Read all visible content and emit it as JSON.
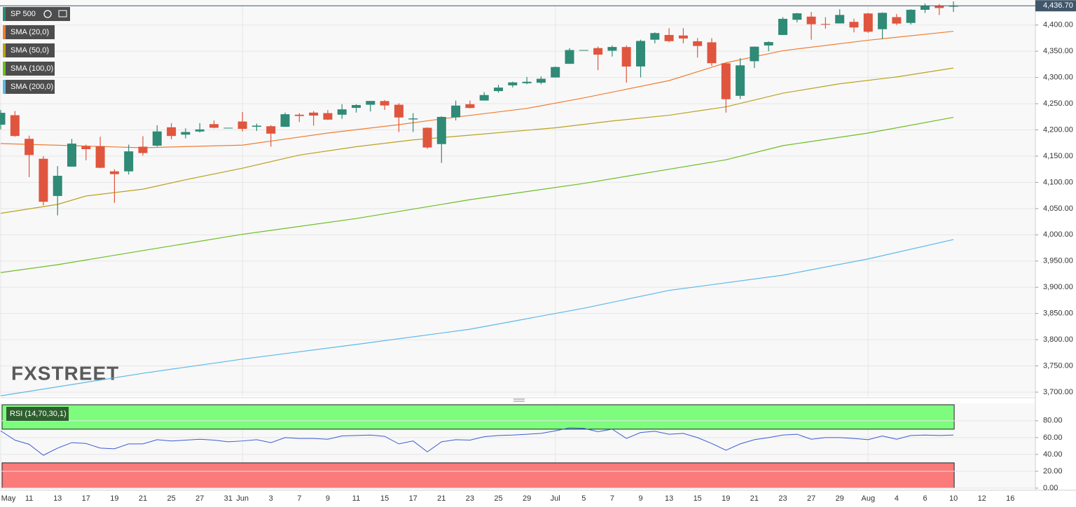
{
  "chart_data": [
    {
      "type": "candlestick",
      "title": "SP 500",
      "categories": [
        "May",
        null,
        "11",
        null,
        "13",
        null,
        "17",
        null,
        "19",
        null,
        "21",
        null,
        "25",
        null,
        "27",
        null,
        "31",
        "Jun",
        null,
        "3",
        null,
        "7",
        null,
        "9",
        null,
        "11",
        null,
        "15",
        null,
        "17",
        null,
        "21",
        null,
        "23",
        null,
        "25",
        null,
        "29",
        null,
        "Jul",
        null,
        "5",
        null,
        "7",
        null,
        "9",
        null,
        "13",
        null,
        "15",
        null,
        "19",
        null,
        "21",
        null,
        "23",
        null,
        "27",
        null,
        "29",
        null,
        "Aug",
        null,
        "4",
        null,
        "6",
        null,
        "10",
        null,
        "12",
        null,
        "16"
      ],
      "open": [
        4210,
        4228,
        4183,
        4145,
        4074,
        4130,
        4169,
        4169,
        4121,
        4121,
        4168,
        4170,
        4205,
        4191,
        4197,
        4211,
        4204.1,
        4216,
        4206,
        4207,
        4206,
        4229,
        4233,
        4232,
        4229,
        4242,
        4248,
        4255,
        4248,
        4220,
        4204,
        4173,
        4224,
        4249,
        4256,
        4274,
        4285,
        4289,
        4290,
        4300,
        4326,
        4352.3,
        4356,
        4351,
        4358,
        4321,
        4372,
        4381,
        4380,
        4369,
        4367,
        4327,
        4265,
        4331,
        4361,
        4381,
        4410,
        4416,
        4402,
        4403,
        4406,
        4422,
        4392,
        4415,
        4404,
        4429,
        4437,
        4435,
        null,
        null,
        null,
        null
      ],
      "high": [
        4238,
        4236,
        4189,
        4150,
        4131,
        4183,
        4172,
        4187,
        4125,
        4172,
        4188,
        4209,
        4213,
        4203,
        4213,
        4218,
        4204.1,
        4234,
        4212,
        4209,
        4233,
        4232,
        4236,
        4238,
        4249,
        4249,
        4255,
        4257,
        4251,
        4232,
        4205,
        4226,
        4256,
        4256,
        4272,
        4286,
        4292,
        4301,
        4302,
        4321,
        4356,
        4352.3,
        4359,
        4361,
        4361,
        4372,
        4386,
        4394,
        4394,
        4375,
        4375,
        4327,
        4337,
        4359,
        4369,
        4415,
        4423,
        4425,
        4415,
        4430,
        4412,
        4423,
        4424,
        4421,
        4430,
        4441,
        4440,
        4445,
        null,
        null,
        null,
        null
      ],
      "low": [
        4201,
        4187,
        4110,
        4056,
        4037,
        4130,
        4142,
        4127,
        4061,
        4115,
        4151,
        4168,
        4182,
        4184,
        4195,
        4203,
        4204.1,
        4197,
        4198,
        4168,
        4206,
        4215,
        4208,
        4219,
        4221,
        4233,
        4235,
        4238,
        4196,
        4196,
        4164,
        4137,
        4218,
        4241,
        4256,
        4271,
        4281,
        4287,
        4287,
        4300,
        4326,
        4352.3,
        4314,
        4340,
        4290,
        4300,
        4365,
        4367,
        4365,
        4338,
        4322,
        4233,
        4259,
        4318,
        4350,
        4381,
        4405,
        4372,
        4393,
        4403,
        4386,
        4385,
        4373,
        4400,
        4401,
        4423,
        4419,
        4425,
        null,
        null,
        null,
        null
      ],
      "close": [
        4232.6,
        4188.4,
        4152.1,
        4063,
        4112.5,
        4173.9,
        4163.3,
        4127.8,
        4115.7,
        4159.1,
        4155.9,
        4197.1,
        4188.4,
        4196,
        4200.9,
        4204.1,
        4204.1,
        4202,
        4208.1,
        4192.9,
        4229.9,
        4226.5,
        4227.3,
        4219.6,
        4239.2,
        4247.4,
        4255.2,
        4246.6,
        4223.7,
        4221.9,
        4166.5,
        4224.8,
        4246.4,
        4241.8,
        4266.5,
        4280.7,
        4290.6,
        4291.8,
        4297.5,
        4319.9,
        4352.3,
        4352.3,
        4343.5,
        4358.1,
        4320.8,
        4369.6,
        4384.6,
        4369.2,
        4374.3,
        4360,
        4327.2,
        4258.5,
        4323.1,
        4358.7,
        4367.5,
        4411.8,
        4422.3,
        4401.5,
        4400.6,
        4419.2,
        4395.3,
        4387.2,
        4423.2,
        4402.7,
        4429.1,
        4436.5,
        4432.4,
        4436.75,
        null,
        null,
        null,
        null
      ],
      "up_color": "#2f8a76",
      "down_color": "#e0553e",
      "series": [
        {
          "name": "SMA (20,0)",
          "color": "#f07d32",
          "x": [
            0,
            10,
            17,
            23,
            28,
            31,
            37,
            41,
            47,
            51,
            55,
            61,
            67
          ],
          "values": [
            4174,
            4166,
            4171,
            4194,
            4210,
            4221,
            4241,
            4261,
            4294,
            4328,
            4351,
            4371,
            4388
          ]
        },
        {
          "name": "SMA (50,0)",
          "color": "#b9a21e",
          "x": [
            0,
            4,
            6,
            10,
            13,
            17,
            21,
            25,
            29,
            33,
            39,
            43,
            47,
            51,
            55,
            59,
            63,
            67
          ],
          "values": [
            4041,
            4058,
            4074,
            4087,
            4105,
            4127,
            4152,
            4168,
            4181,
            4190,
            4204,
            4217,
            4228,
            4244,
            4270,
            4288,
            4301,
            4318
          ]
        },
        {
          "name": "SMA (100,0)",
          "color": "#6cbd22",
          "x": [
            0,
            4,
            10,
            17,
            25,
            33,
            41,
            47,
            51,
            55,
            61,
            67
          ],
          "values": [
            3928,
            3943,
            3970,
            4001,
            4031,
            4067,
            4098,
            4125,
            4143,
            4170,
            4194,
            4224
          ]
        },
        {
          "name": "SMA (200,0)",
          "color": "#5cb8e8",
          "x": [
            0,
            10,
            17,
            25,
            33,
            41,
            47,
            55,
            61,
            67
          ],
          "values": [
            3693,
            3736,
            3763,
            3791,
            3820,
            3860,
            3894,
            3923,
            3954,
            3991
          ]
        }
      ],
      "ylim": [
        3692,
        4437
      ],
      "yticks": [
        {
          "value": 3700,
          "label": "3,700.00"
        },
        {
          "value": 3750,
          "label": "3,750.00"
        },
        {
          "value": 3800,
          "label": "3,800.00"
        },
        {
          "value": 3850,
          "label": "3,850.00"
        },
        {
          "value": 3900,
          "label": "3,900.00"
        },
        {
          "value": 3950,
          "label": "3,950.00"
        },
        {
          "value": 4000,
          "label": "4,000.00"
        },
        {
          "value": 4050,
          "label": "4,050.00"
        },
        {
          "value": 4100,
          "label": "4,100.00"
        },
        {
          "value": 4150,
          "label": "4,150.00"
        },
        {
          "value": 4200,
          "label": "4,200.00"
        },
        {
          "value": 4250,
          "label": "4,250.00"
        },
        {
          "value": 4300,
          "label": "4,300.00"
        },
        {
          "value": 4350,
          "label": "4,350.00"
        },
        {
          "value": 4400,
          "label": "4,400.00"
        }
      ],
      "last_price": {
        "value": 4436.7,
        "label": "4,436.70"
      },
      "grid": true
    },
    {
      "type": "line",
      "title": "RSI (14,70,30,1)",
      "color": "#3b5bd6",
      "values": [
        68,
        57,
        52,
        39,
        47.5,
        54,
        53,
        47.5,
        46.7,
        52.5,
        52.5,
        57.5,
        56,
        57,
        58,
        57,
        55,
        56,
        57.5,
        54,
        60,
        59,
        59,
        58,
        62,
        62.5,
        63,
        61.5,
        52.5,
        56,
        43,
        55,
        57.5,
        57,
        61,
        62.5,
        63,
        64,
        65,
        68,
        71.5,
        71,
        67,
        70,
        59,
        66,
        67.5,
        64,
        65,
        60,
        53,
        45,
        52.5,
        57.5,
        60,
        63,
        64,
        58,
        60,
        60,
        59,
        57.5,
        62,
        58,
        62.5,
        63,
        62.5,
        63,
        null,
        null,
        null,
        null
      ],
      "overbought": 70,
      "oversold": 30,
      "overbought_color": "#7efc7e",
      "oversold_color": "#fb7a7a",
      "ylim": [
        0,
        99
      ],
      "yticks": [
        {
          "value": 0,
          "label": "0.00"
        },
        {
          "value": 20,
          "label": "20.00"
        },
        {
          "value": 40,
          "label": "40.00"
        },
        {
          "value": 60,
          "label": "60.00"
        },
        {
          "value": 80,
          "label": "80.00"
        }
      ]
    }
  ],
  "watermark": "FXSTREET"
}
